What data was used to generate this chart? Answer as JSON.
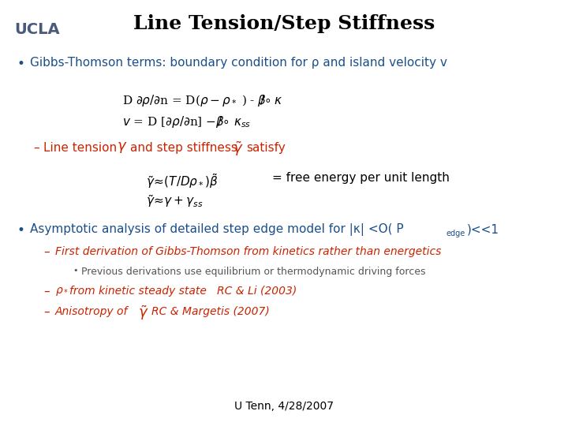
{
  "title": "Line Tension/Step Stiffness",
  "title_color": "#000000",
  "title_fontsize": 18,
  "background_color": "#ffffff",
  "ucla_text": "UCLA",
  "ucla_color": "#4a5a7a",
  "ucla_fontsize": 14,
  "footer_text": "U Tenn, 4/28/2007",
  "footer_color": "#000000",
  "footer_fontsize": 10,
  "bullet1_color": "#1a4f8a",
  "bullet1_fontsize": 11,
  "red_color": "#cc2200",
  "blue_color": "#1a4f8a",
  "black_color": "#000000",
  "gray_color": "#555555",
  "eq_fontsize": 11,
  "dash_fontsize": 11,
  "sub_fontsize": 10,
  "subbullet_fontsize": 9
}
